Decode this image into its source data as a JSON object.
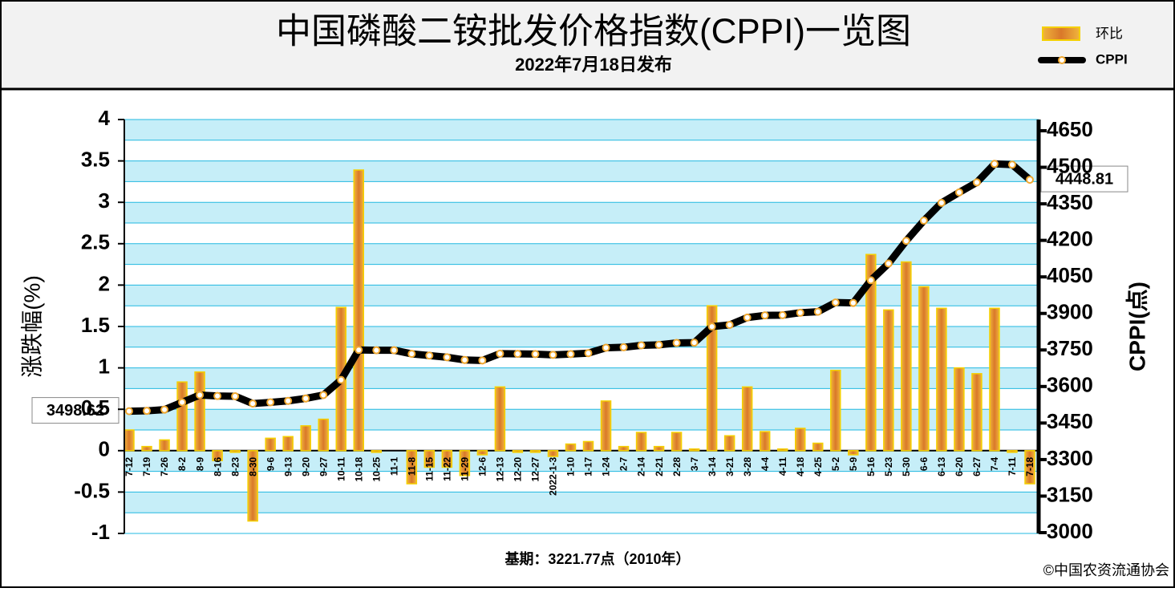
{
  "chart_data": {
    "type": "bar-line",
    "title": "中国磷酸二铵批发价格指数(CPPI)一览图",
    "subtitle": "2022年7月18日发布",
    "y_label": "涨跌幅(%)",
    "y2_label": "CPPI(点)",
    "footnote": "基期：3221.77点（2010年）",
    "source": "©中国农资流通协会",
    "categories": [
      "7-12",
      "7-19",
      "7-26",
      "8-2",
      "8-9",
      "8-16",
      "8-23",
      "8-30",
      "9-6",
      "9-13",
      "9-20",
      "9-27",
      "10-11",
      "10-18",
      "10-25",
      "11-1",
      "11-8",
      "11-15",
      "11-22",
      "11-29",
      "12-6",
      "12-13",
      "12-20",
      "12-27",
      "2022-1-3",
      "1-10",
      "1-17",
      "1-24",
      "2-7",
      "2-14",
      "2-21",
      "2-28",
      "3-7",
      "3-14",
      "3-21",
      "3-28",
      "4-4",
      "4-11",
      "4-18",
      "4-25",
      "5-2",
      "5-9",
      "5-16",
      "5-23",
      "5-30",
      "6-6",
      "6-13",
      "6-20",
      "6-27",
      "7-4",
      "7-11",
      "7-18"
    ],
    "series": [
      {
        "name": "环比",
        "type": "bar",
        "axis": "y",
        "color": "#e8922a",
        "values": [
          0.25,
          0.05,
          0.13,
          0.83,
          0.95,
          -0.12,
          -0.02,
          -0.85,
          0.15,
          0.17,
          0.3,
          0.38,
          1.73,
          3.39,
          -0.02,
          0,
          -0.4,
          -0.2,
          -0.2,
          -0.3,
          -0.05,
          0.77,
          -0.02,
          -0.02,
          -0.07,
          0.08,
          0.11,
          0.6,
          0.05,
          0.22,
          0.05,
          0.22,
          0.02,
          1.75,
          0.18,
          0.77,
          0.23,
          0.02,
          0.27,
          0.09,
          0.97,
          -0.05,
          2.37,
          1.7,
          2.28,
          1.98,
          1.72,
          1.0,
          0.93,
          1.72,
          -0.02,
          -0.4
        ]
      },
      {
        "name": "CPPI",
        "type": "line",
        "axis": "y2",
        "color": "#000000",
        "values": [
          3498.62,
          3500,
          3505,
          3535,
          3565,
          3561,
          3560,
          3530,
          3535,
          3541,
          3551,
          3565,
          3627,
          3750,
          3749,
          3749,
          3734,
          3727,
          3720,
          3709,
          3707,
          3735,
          3734,
          3733,
          3730,
          3733,
          3737,
          3759,
          3761,
          3769,
          3771,
          3779,
          3780,
          3846,
          3853,
          3883,
          3892,
          3893,
          3903,
          3907,
          3945,
          3943,
          4036,
          4105,
          4198,
          4281,
          4354,
          4397,
          4438,
          4514,
          4511,
          4448.81
        ]
      }
    ],
    "ylim": [
      -1,
      4
    ],
    "yticks": [
      -1,
      -0.5,
      0,
      0.5,
      1,
      1.5,
      2,
      2.5,
      3,
      3.5,
      4
    ],
    "y2lim": [
      3000,
      4650
    ],
    "y2ticks": [
      3000,
      3150,
      3300,
      3450,
      3600,
      3750,
      3900,
      4050,
      4200,
      4350,
      4500,
      4650
    ],
    "grid": true
  }
}
